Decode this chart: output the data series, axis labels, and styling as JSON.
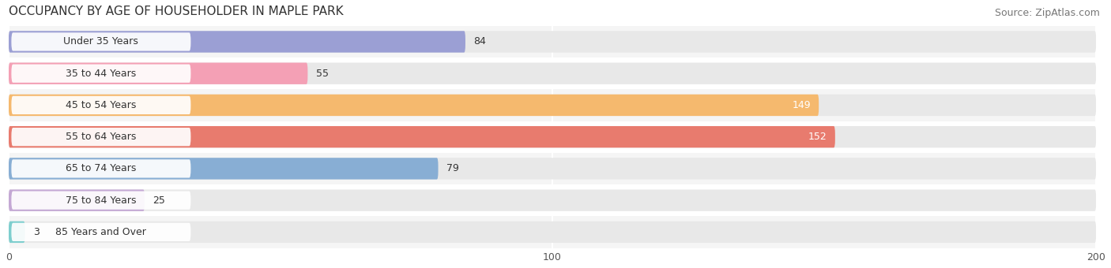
{
  "title": "OCCUPANCY BY AGE OF HOUSEHOLDER IN MAPLE PARK",
  "source": "Source: ZipAtlas.com",
  "categories": [
    "Under 35 Years",
    "35 to 44 Years",
    "45 to 54 Years",
    "55 to 64 Years",
    "65 to 74 Years",
    "75 to 84 Years",
    "85 Years and Over"
  ],
  "values": [
    84,
    55,
    149,
    152,
    79,
    25,
    3
  ],
  "bar_colors": [
    "#9b9fd4",
    "#f4a0b5",
    "#f5b96e",
    "#e87b6e",
    "#88aed4",
    "#c4a8d4",
    "#7ecece"
  ],
  "bar_bg_color": "#e8e8e8",
  "row_bg_colors": [
    "#f5f5f5",
    "#ffffff"
  ],
  "xlim": [
    0,
    200
  ],
  "xticks": [
    0,
    100,
    200
  ],
  "title_fontsize": 11,
  "source_fontsize": 9,
  "label_fontsize": 9,
  "value_fontsize": 9,
  "figsize": [
    14.06,
    3.4
  ],
  "dpi": 100
}
